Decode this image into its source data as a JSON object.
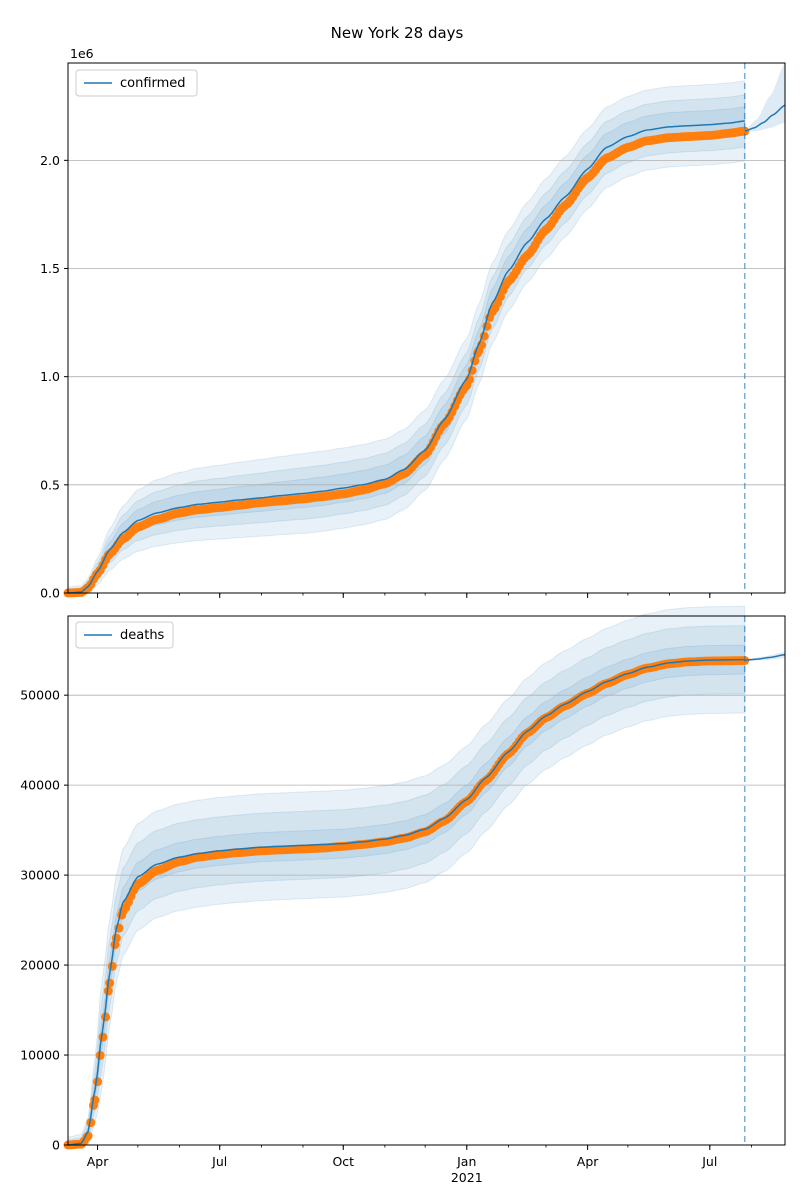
{
  "title": "New York 28 days",
  "colors": {
    "fit": "#1f77b4",
    "observed": "#ff7f0e",
    "band": "#1f77b4",
    "grid": "#b0b0b0",
    "cutoff": "#1f77b4"
  },
  "x_axis": {
    "start": "2020-03-10",
    "end": "2021-08-26",
    "ticks": [
      {
        "date": "2020-04-01",
        "label": "Apr"
      },
      {
        "date": "2020-07-01",
        "label": "Jul"
      },
      {
        "date": "2020-10-01",
        "label": "Oct"
      },
      {
        "date": "2021-01-01",
        "label": "Jan"
      },
      {
        "date": "2021-04-01",
        "label": "Apr"
      },
      {
        "date": "2021-07-01",
        "label": "Jul"
      }
    ],
    "year_label": {
      "date": "2021-01-01",
      "label": "2021"
    },
    "cutoff_date": "2021-07-27"
  },
  "chart_data": [
    {
      "type": "line",
      "legend": "confirmed",
      "legend_position": "upper-left",
      "offset_label": "1e6",
      "ylim": [
        0,
        2450000
      ],
      "yticks": [
        {
          "value": 0,
          "label": "0.0"
        },
        {
          "value": 500000,
          "label": "0.5"
        },
        {
          "value": 1000000,
          "label": "1.0"
        },
        {
          "value": 1500000,
          "label": "1.5"
        },
        {
          "value": 2000000,
          "label": "2.0"
        }
      ],
      "grid": true,
      "observed": [
        [
          "2020-03-10",
          0
        ],
        [
          "2020-03-20",
          3000
        ],
        [
          "2020-03-25",
          25000
        ],
        [
          "2020-04-01",
          90000
        ],
        [
          "2020-04-10",
          180000
        ],
        [
          "2020-04-20",
          250000
        ],
        [
          "2020-05-01",
          305000
        ],
        [
          "2020-05-15",
          340000
        ],
        [
          "2020-06-01",
          370000
        ],
        [
          "2020-06-15",
          385000
        ],
        [
          "2020-07-01",
          395000
        ],
        [
          "2020-07-15",
          405000
        ],
        [
          "2020-08-01",
          418000
        ],
        [
          "2020-08-15",
          425000
        ],
        [
          "2020-09-01",
          435000
        ],
        [
          "2020-09-15",
          445000
        ],
        [
          "2020-10-01",
          458000
        ],
        [
          "2020-10-15",
          475000
        ],
        [
          "2020-11-01",
          505000
        ],
        [
          "2020-11-15",
          550000
        ],
        [
          "2020-12-01",
          640000
        ],
        [
          "2020-12-15",
          780000
        ],
        [
          "2021-01-01",
          960000
        ],
        [
          "2021-01-10",
          1120000
        ],
        [
          "2021-01-20",
          1300000
        ],
        [
          "2021-02-01",
          1440000
        ],
        [
          "2021-02-15",
          1560000
        ],
        [
          "2021-03-01",
          1680000
        ],
        [
          "2021-03-15",
          1790000
        ],
        [
          "2021-04-01",
          1920000
        ],
        [
          "2021-04-15",
          2010000
        ],
        [
          "2021-05-01",
          2060000
        ],
        [
          "2021-05-15",
          2090000
        ],
        [
          "2021-06-01",
          2105000
        ],
        [
          "2021-06-15",
          2110000
        ],
        [
          "2021-07-01",
          2115000
        ],
        [
          "2021-07-15",
          2125000
        ],
        [
          "2021-07-27",
          2135000
        ]
      ],
      "fit": [
        [
          "2020-03-10",
          0
        ],
        [
          "2020-03-20",
          5000
        ],
        [
          "2020-03-25",
          30000
        ],
        [
          "2020-04-01",
          100000
        ],
        [
          "2020-04-10",
          200000
        ],
        [
          "2020-04-20",
          280000
        ],
        [
          "2020-05-01",
          335000
        ],
        [
          "2020-05-15",
          370000
        ],
        [
          "2020-06-01",
          395000
        ],
        [
          "2020-06-15",
          410000
        ],
        [
          "2020-07-01",
          420000
        ],
        [
          "2020-07-15",
          430000
        ],
        [
          "2020-08-01",
          440000
        ],
        [
          "2020-08-15",
          450000
        ],
        [
          "2020-09-01",
          460000
        ],
        [
          "2020-09-15",
          470000
        ],
        [
          "2020-10-01",
          485000
        ],
        [
          "2020-10-15",
          500000
        ],
        [
          "2020-11-01",
          525000
        ],
        [
          "2020-11-15",
          570000
        ],
        [
          "2020-12-01",
          660000
        ],
        [
          "2020-12-15",
          800000
        ],
        [
          "2021-01-01",
          990000
        ],
        [
          "2021-01-10",
          1150000
        ],
        [
          "2021-01-20",
          1340000
        ],
        [
          "2021-02-01",
          1490000
        ],
        [
          "2021-02-15",
          1620000
        ],
        [
          "2021-03-01",
          1730000
        ],
        [
          "2021-03-15",
          1830000
        ],
        [
          "2021-04-01",
          1960000
        ],
        [
          "2021-04-15",
          2060000
        ],
        [
          "2021-05-01",
          2110000
        ],
        [
          "2021-05-15",
          2140000
        ],
        [
          "2021-06-01",
          2155000
        ],
        [
          "2021-06-15",
          2160000
        ],
        [
          "2021-07-01",
          2165000
        ],
        [
          "2021-07-15",
          2172000
        ],
        [
          "2021-07-27",
          2182000
        ]
      ],
      "forecast": [
        [
          "2021-07-27",
          2135000
        ],
        [
          "2021-08-03",
          2150000
        ],
        [
          "2021-08-10",
          2175000
        ],
        [
          "2021-08-17",
          2210000
        ],
        [
          "2021-08-26",
          2255000
        ]
      ],
      "forecast_band": {
        "upper": [
          [
            "2021-07-27",
            2140000
          ],
          [
            "2021-08-05",
            2190000
          ],
          [
            "2021-08-15",
            2300000
          ],
          [
            "2021-08-26",
            2450000
          ]
        ],
        "lower": [
          [
            "2021-07-27",
            2130000
          ],
          [
            "2021-08-05",
            2135000
          ],
          [
            "2021-08-15",
            2150000
          ],
          [
            "2021-08-26",
            2175000
          ]
        ]
      },
      "band_spreads": [
        0.03,
        0.055,
        0.085
      ]
    },
    {
      "type": "line",
      "legend": "deaths",
      "legend_position": "upper-left",
      "ylim": [
        0,
        58800
      ],
      "yticks": [
        {
          "value": 0,
          "label": "0"
        },
        {
          "value": 10000,
          "label": "10000"
        },
        {
          "value": 20000,
          "label": "20000"
        },
        {
          "value": 30000,
          "label": "30000"
        },
        {
          "value": 40000,
          "label": "40000"
        },
        {
          "value": 50000,
          "label": "50000"
        }
      ],
      "grid": true,
      "observed": [
        [
          "2020-03-10",
          0
        ],
        [
          "2020-03-20",
          100
        ],
        [
          "2020-03-25",
          1000
        ],
        [
          "2020-03-30",
          5000
        ],
        [
          "2020-04-05",
          12000
        ],
        [
          "2020-04-10",
          18000
        ],
        [
          "2020-04-15",
          23000
        ],
        [
          "2020-04-20",
          26000
        ],
        [
          "2020-05-01",
          29000
        ],
        [
          "2020-05-15",
          30500
        ],
        [
          "2020-06-01",
          31500
        ],
        [
          "2020-06-15",
          32000
        ],
        [
          "2020-07-01",
          32300
        ],
        [
          "2020-07-15",
          32500
        ],
        [
          "2020-08-01",
          32700
        ],
        [
          "2020-08-15",
          32800
        ],
        [
          "2020-09-01",
          32900
        ],
        [
          "2020-09-15",
          33000
        ],
        [
          "2020-10-01",
          33200
        ],
        [
          "2020-10-15",
          33400
        ],
        [
          "2020-11-01",
          33700
        ],
        [
          "2020-11-15",
          34100
        ],
        [
          "2020-12-01",
          34800
        ],
        [
          "2020-12-15",
          36000
        ],
        [
          "2021-01-01",
          38200
        ],
        [
          "2021-01-15",
          40500
        ],
        [
          "2021-02-01",
          43500
        ],
        [
          "2021-02-15",
          45800
        ],
        [
          "2021-03-01",
          47500
        ],
        [
          "2021-03-15",
          48800
        ],
        [
          "2021-04-01",
          50200
        ],
        [
          "2021-04-15",
          51300
        ],
        [
          "2021-05-01",
          52300
        ],
        [
          "2021-05-15",
          53000
        ],
        [
          "2021-06-01",
          53500
        ],
        [
          "2021-06-15",
          53700
        ],
        [
          "2021-07-01",
          53800
        ],
        [
          "2021-07-27",
          53850
        ]
      ],
      "fit": [
        [
          "2020-03-10",
          0
        ],
        [
          "2020-03-20",
          200
        ],
        [
          "2020-03-25",
          1500
        ],
        [
          "2020-03-30",
          6000
        ],
        [
          "2020-04-05",
          13000
        ],
        [
          "2020-04-10",
          19000
        ],
        [
          "2020-04-15",
          24000
        ],
        [
          "2020-04-20",
          27000
        ],
        [
          "2020-05-01",
          29800
        ],
        [
          "2020-05-15",
          31200
        ],
        [
          "2020-06-01",
          32000
        ],
        [
          "2020-06-15",
          32400
        ],
        [
          "2020-07-01",
          32700
        ],
        [
          "2020-07-15",
          32900
        ],
        [
          "2020-08-01",
          33100
        ],
        [
          "2020-08-15",
          33200
        ],
        [
          "2020-09-01",
          33300
        ],
        [
          "2020-09-15",
          33400
        ],
        [
          "2020-10-01",
          33500
        ],
        [
          "2020-10-15",
          33700
        ],
        [
          "2020-11-01",
          34000
        ],
        [
          "2020-11-15",
          34400
        ],
        [
          "2020-12-01",
          35100
        ],
        [
          "2020-12-15",
          36300
        ],
        [
          "2021-01-01",
          38400
        ],
        [
          "2021-01-15",
          40800
        ],
        [
          "2021-02-01",
          43700
        ],
        [
          "2021-02-15",
          46000
        ],
        [
          "2021-03-01",
          47700
        ],
        [
          "2021-03-15",
          49000
        ],
        [
          "2021-04-01",
          50400
        ],
        [
          "2021-04-15",
          51500
        ],
        [
          "2021-05-01",
          52400
        ],
        [
          "2021-05-15",
          53100
        ],
        [
          "2021-06-01",
          53600
        ],
        [
          "2021-06-15",
          53800
        ],
        [
          "2021-07-01",
          53900
        ],
        [
          "2021-07-27",
          53950
        ]
      ],
      "forecast": [
        [
          "2021-07-27",
          53900
        ],
        [
          "2021-08-05",
          54000
        ],
        [
          "2021-08-15",
          54200
        ],
        [
          "2021-08-26",
          54500
        ]
      ],
      "forecast_band": {
        "upper": [
          [
            "2021-07-27",
            54000
          ],
          [
            "2021-08-10",
            54300
          ],
          [
            "2021-08-26",
            54800
          ]
        ],
        "lower": [
          [
            "2021-07-27",
            53800
          ],
          [
            "2021-08-10",
            53900
          ],
          [
            "2021-08-26",
            54100
          ]
        ]
      },
      "band_spreads": [
        0.03,
        0.07,
        0.11
      ]
    }
  ]
}
